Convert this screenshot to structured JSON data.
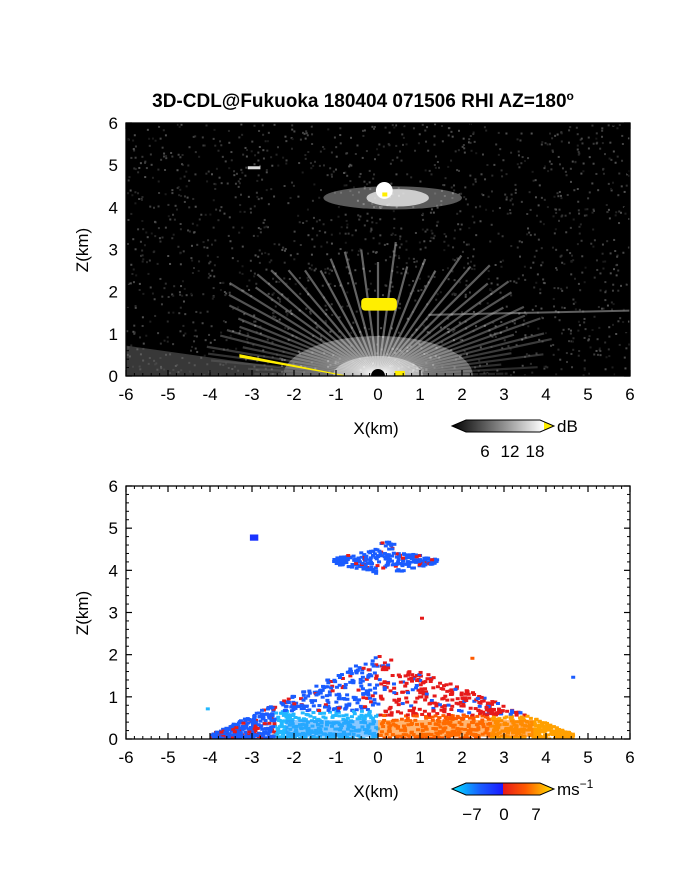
{
  "title": "3D-CDL@Fukuoka 180404 071506 RHI AZ=180",
  "title_suffix": "o",
  "colors": {
    "highlight_yellow": "#ffee00",
    "background_black": "#000000",
    "velocity_blue": "#1a33ff",
    "velocity_red": "#e61a1a",
    "velocity_orange": "#ff7a00"
  },
  "chart_data": [
    {
      "id": "reflectivity",
      "type": "heatmap",
      "xlabel": "X(km)",
      "ylabel": "Z(km)",
      "xlim": [
        -6,
        6
      ],
      "ylim": [
        0,
        6
      ],
      "xticks": [
        "-6",
        "-5",
        "-4",
        "-3",
        "-2",
        "-1",
        "0",
        "1",
        "2",
        "3",
        "4",
        "5",
        "6"
      ],
      "yticks": [
        "0",
        "1",
        "2",
        "3",
        "4",
        "5",
        "6"
      ],
      "colorbar": {
        "unit": "dB",
        "ticks": [
          "6",
          "12",
          "18"
        ],
        "range": [
          0,
          20
        ],
        "colormap": "black-to-white, yellow above 18"
      },
      "features": [
        {
          "label": "cloud layer",
          "x": [
            -1.3,
            2.0
          ],
          "z": [
            3.95,
            4.5
          ],
          "value": "bright"
        },
        {
          "label": "cloud top",
          "x": [
            -0.05,
            0.35
          ],
          "z": [
            4.2,
            4.6
          ],
          "value": "above 18 dB"
        },
        {
          "label": "aerosol top",
          "x": [
            -0.4,
            0.45
          ],
          "z": [
            1.55,
            1.85
          ],
          "value": "above 18 dB"
        },
        {
          "label": "faint layer",
          "x": [
            -3.1,
            -2.8
          ],
          "z": [
            4.9,
            4.95
          ],
          "value": "weak"
        },
        {
          "label": "near-ground echo",
          "x": [
            -3.3,
            0.7
          ],
          "z": [
            0.0,
            0.5
          ],
          "value": "above 18 dB"
        }
      ]
    },
    {
      "id": "doppler_velocity",
      "type": "heatmap",
      "xlabel": "X(km)",
      "ylabel": "Z(km)",
      "xlim": [
        -6,
        6
      ],
      "ylim": [
        0,
        6
      ],
      "xticks": [
        "-6",
        "-5",
        "-4",
        "-3",
        "-2",
        "-1",
        "0",
        "1",
        "2",
        "3",
        "4",
        "5",
        "6"
      ],
      "yticks": [
        "0",
        "1",
        "2",
        "3",
        "4",
        "5",
        "6"
      ],
      "colorbar": {
        "unit": "ms",
        "unit_sup": "−1",
        "ticks": [
          "−7",
          "0",
          "7"
        ],
        "range": [
          -10,
          10
        ],
        "colormap": "cyan-blue-red-yellow"
      },
      "features": [
        {
          "label": "cloud layer",
          "x": [
            -1.1,
            1.4
          ],
          "z": [
            3.95,
            4.7
          ],
          "value": -5
        },
        {
          "label": "boundary layer (approaching)",
          "x": [
            -4.0,
            0.0
          ],
          "z": [
            0.0,
            2.3
          ],
          "value": -5
        },
        {
          "label": "boundary layer (receding)",
          "x": [
            0.0,
            4.6
          ],
          "z": [
            0.0,
            2.3
          ],
          "value": 4
        },
        {
          "label": "isolated",
          "x": [
            -3.05,
            -2.85
          ],
          "z": [
            4.75,
            4.85
          ],
          "value": -6
        }
      ]
    }
  ]
}
